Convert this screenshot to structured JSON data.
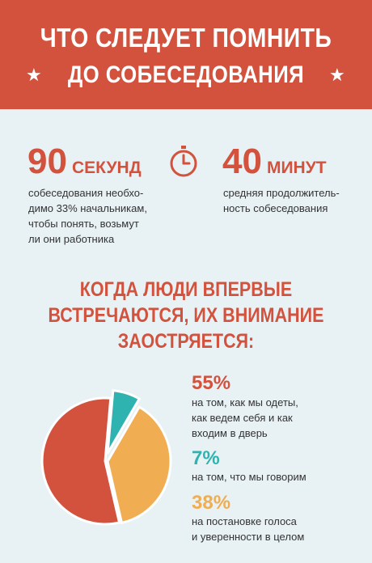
{
  "header": {
    "title": "ЧТО СЛЕДУЕТ ПОМНИТЬ",
    "subtitle": "ДО СОБЕСЕДОВАНИЯ",
    "star": "★"
  },
  "stats": [
    {
      "number": "90",
      "unit": "СЕКУНД",
      "lines": [
        "собеседования необхо-",
        "димо 33% начальникам,",
        "чтобы понять, возьмут",
        "ли они работника"
      ]
    },
    {
      "number": "40",
      "unit": "МИНУТ",
      "lines": [
        "средняя продолжитель-",
        "ность собеседования"
      ]
    }
  ],
  "heading": [
    "КОГДА ЛЮДИ ВПЕРВЫЕ",
    "ВСТРЕЧАЮТСЯ, ИХ ВНИМАНИЕ",
    "ЗАОСТРЯЕТСЯ:"
  ],
  "breakdown": [
    {
      "percent": "55%",
      "value": 55,
      "color": "#d2523d",
      "lines": [
        "на том, как мы одеты,",
        "как ведем себя и как",
        "входим в дверь"
      ]
    },
    {
      "percent": "7%",
      "value": 7,
      "color": "#2fb3b0",
      "lines": [
        "на том, что мы говорим"
      ]
    },
    {
      "percent": "38%",
      "value": 38,
      "color": "#f0ad52",
      "lines": [
        "на постановке голоса",
        "и уверенности в целом"
      ]
    }
  ],
  "colors": {
    "accent": "#d2523d",
    "teal": "#2fb3b0",
    "orange": "#f0ad52",
    "background": "#e8f1f4"
  },
  "icons": {
    "clock": "clock-icon"
  }
}
